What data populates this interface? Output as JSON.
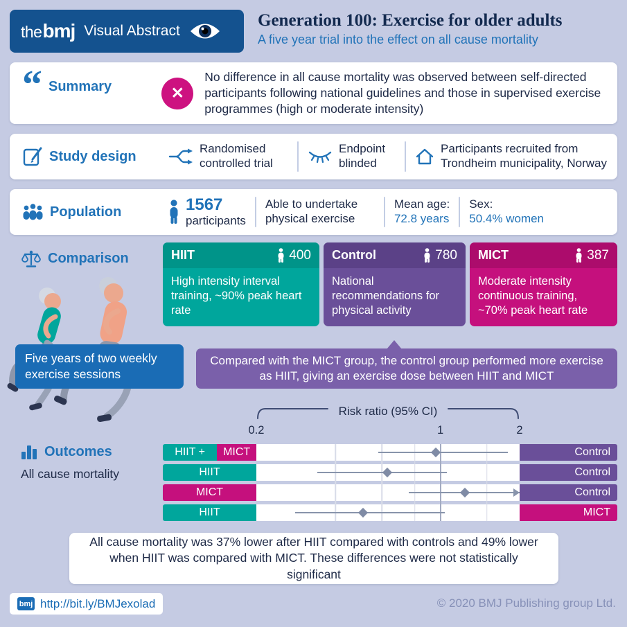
{
  "colors": {
    "brand_dark_blue": "#14528f",
    "heading_blue": "#2173b8",
    "dark_text": "#1e2a47",
    "teal": "#00a69c",
    "teal_dark": "#009489",
    "purple": "#6a4f99",
    "purple_dark": "#5b4187",
    "magenta": "#c5107d",
    "magenta_dark": "#ac0c6c",
    "callout_purple": "#7a60aa",
    "action_blue": "#1a6cb5",
    "muted_blue_gray": "#8791b8"
  },
  "icons": {
    "quote": "“",
    "cross": "✕"
  },
  "header": {
    "brand_the": "the",
    "brand_bmj": "bmj",
    "brand_label": "Visual Abstract",
    "title": "Generation 100: Exercise for older adults",
    "subtitle": "A five year trial into the effect on all cause mortality"
  },
  "summary": {
    "heading": "Summary",
    "text": "No difference in all cause mortality was observed between self-directed participants following national guidelines and those in supervised exercise programmes (high or moderate intensity)"
  },
  "study_design": {
    "heading": "Study design",
    "items": [
      {
        "icon": "randomised-icon",
        "text": "Randomised controlled trial"
      },
      {
        "icon": "blinded-eye-icon",
        "text": "Endpoint blinded"
      },
      {
        "icon": "house-icon",
        "text": "Participants recruited from Trondheim municipality, Norway"
      }
    ]
  },
  "population": {
    "heading": "Population",
    "count": "1567",
    "count_label": "participants",
    "criteria": "Able to undertake physical exercise",
    "mean_age_label": "Mean age:",
    "mean_age_value": "72.8 years",
    "sex_label": "Sex:",
    "sex_value": "50.4% women"
  },
  "comparison": {
    "heading": "Comparison",
    "cards": [
      {
        "name": "HIIT",
        "count": "400",
        "description": "High intensity interval training, ~90% peak heart rate",
        "color": "#00a69c",
        "header_color": "#009489"
      },
      {
        "name": "Control",
        "count": "780",
        "description": "National recommendations for physical activity",
        "color": "#6a4f99",
        "header_color": "#5b4187"
      },
      {
        "name": "MICT",
        "count": "387",
        "description": "Moderate intensity continuous training, ~70% peak heart rate",
        "color": "#c5107d",
        "header_color": "#ac0c6c"
      }
    ],
    "duration_note": "Five years of two weekly exercise sessions",
    "callout": "Compared with the MICT group, the control group performed more exercise as HIIT, giving an exercise dose between HIIT and MICT"
  },
  "outcomes": {
    "heading": "Outcomes",
    "subheading": "All cause mortality",
    "conclusion": "All cause mortality was 37% lower after HIIT compared with controls and 49% lower when HIIT was compared with MICT. These differences were not statistically significant"
  },
  "chart_data": {
    "type": "forest",
    "title": "Risk ratio (95% CI)",
    "axis": {
      "scale": "log",
      "min": 0.2,
      "max": 2,
      "ticks": [
        0.2,
        1,
        2
      ],
      "gridlines": [
        0.4,
        0.6,
        0.8,
        1,
        1.5
      ]
    },
    "rows": [
      {
        "left_labels": [
          {
            "text": "HIIT +",
            "color": "#00a69c"
          },
          {
            "text": "MICT",
            "color": "#c5107d"
          }
        ],
        "right_label": {
          "text": "Control",
          "color": "#6a4f99"
        },
        "point": 0.96,
        "ci_low": 0.58,
        "ci_high": 1.8,
        "arrow_right": false
      },
      {
        "left_labels": [
          {
            "text": "HIIT",
            "color": "#00a69c"
          }
        ],
        "right_label": {
          "text": "Control",
          "color": "#6a4f99"
        },
        "point": 0.63,
        "ci_low": 0.34,
        "ci_high": 1.06,
        "arrow_right": false
      },
      {
        "left_labels": [
          {
            "text": "MICT",
            "color": "#c5107d"
          }
        ],
        "right_label": {
          "text": "Control",
          "color": "#6a4f99"
        },
        "point": 1.24,
        "ci_low": 0.76,
        "ci_high": 2.0,
        "arrow_right": true
      },
      {
        "left_labels": [
          {
            "text": "HIIT",
            "color": "#00a69c"
          }
        ],
        "right_label": {
          "text": "MICT",
          "color": "#c5107d"
        },
        "point": 0.51,
        "ci_low": 0.28,
        "ci_high": 1.04,
        "arrow_right": false
      }
    ]
  },
  "footer": {
    "logo": "bmj",
    "link": "http://bit.ly/BMJexolad",
    "copyright": "© 2020 BMJ Publishing group Ltd."
  }
}
